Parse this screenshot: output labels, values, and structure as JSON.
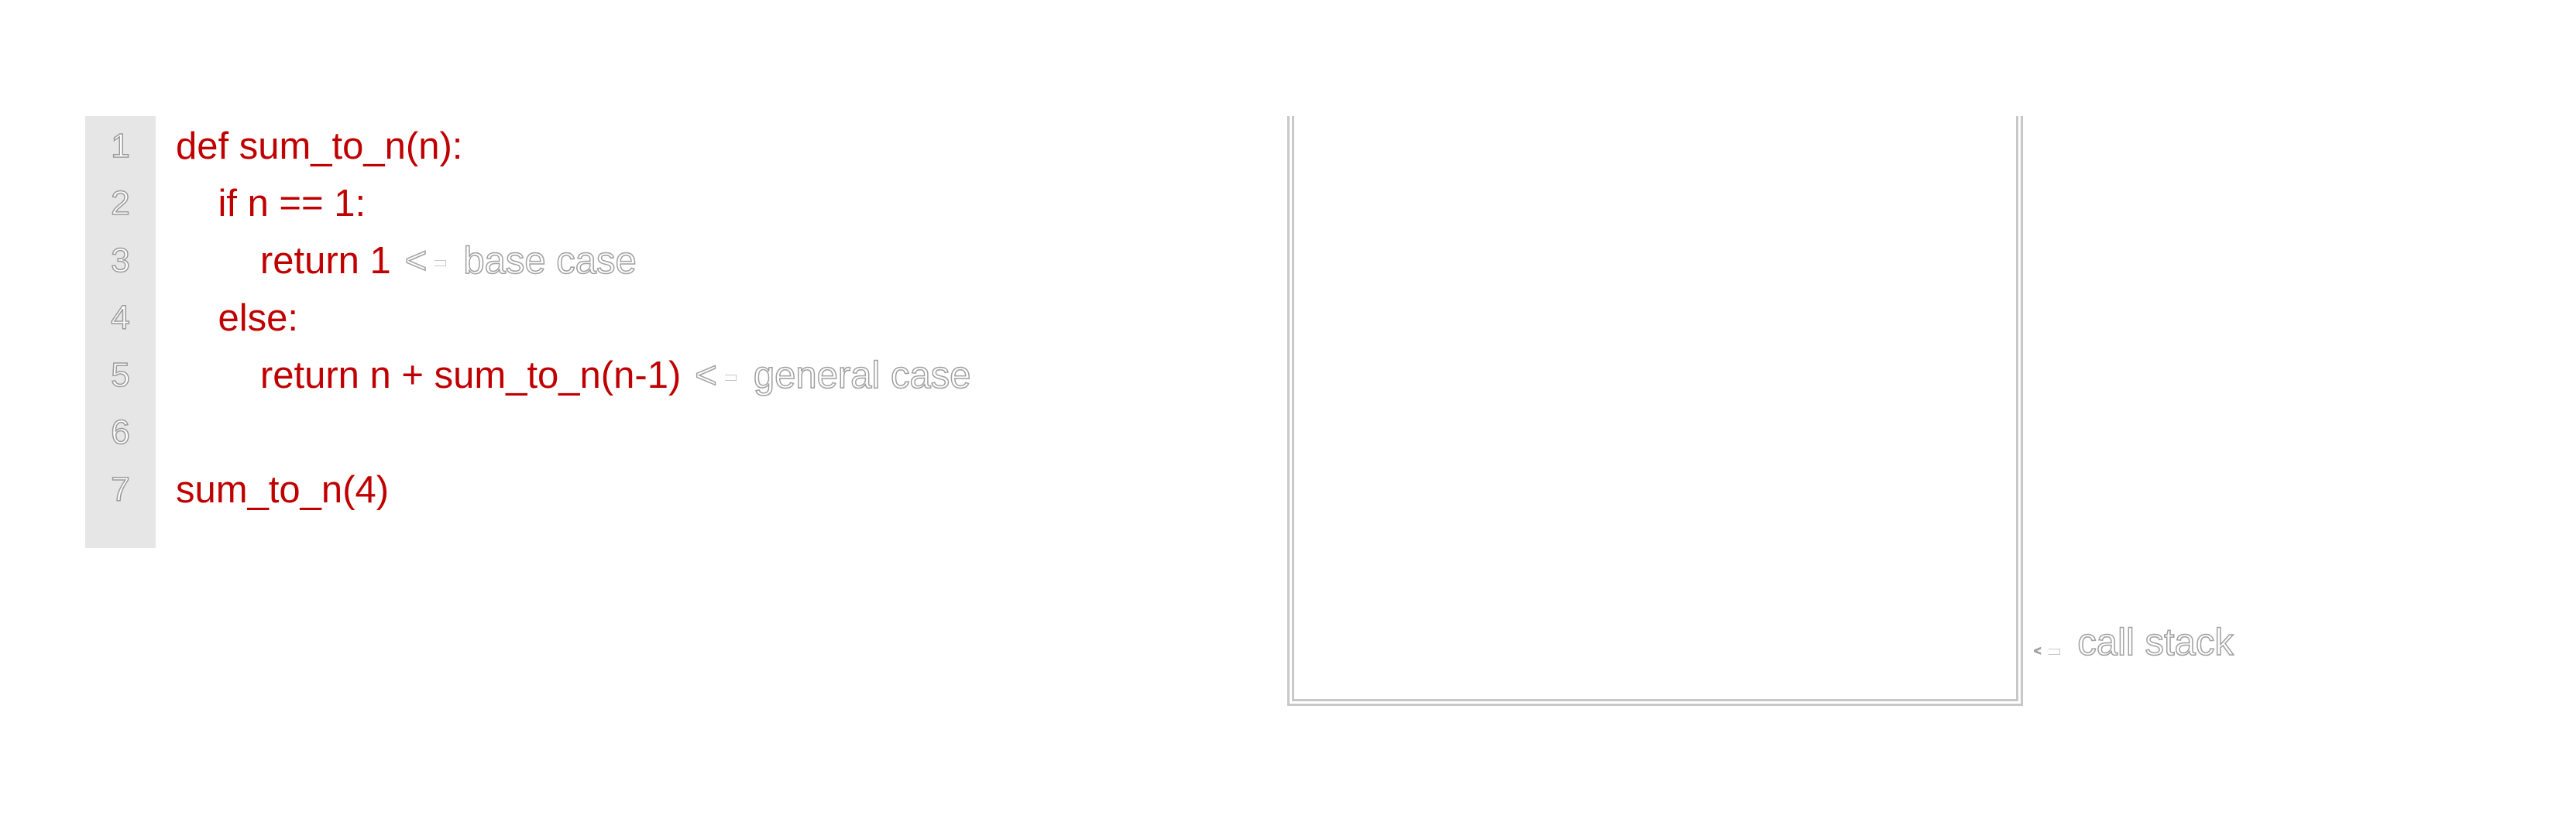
{
  "code": {
    "line_numbers": [
      "1",
      "2",
      "3",
      "4",
      "5",
      "6",
      "7"
    ],
    "lines": [
      "def sum_to_n(n):",
      "    if n == 1:",
      "        return 1",
      "    else:",
      "        return n + sum_to_n(n-1)",
      "",
      "sum_to_n(4)"
    ]
  },
  "annotations": {
    "base_case": "base case",
    "general_case": "general case",
    "call_stack": "call stack",
    "arrow_glyph": "<"
  },
  "colors": {
    "code_text": "#c00000",
    "gutter_bg": "#e6e6e6",
    "outline": "#a0a0a0"
  }
}
